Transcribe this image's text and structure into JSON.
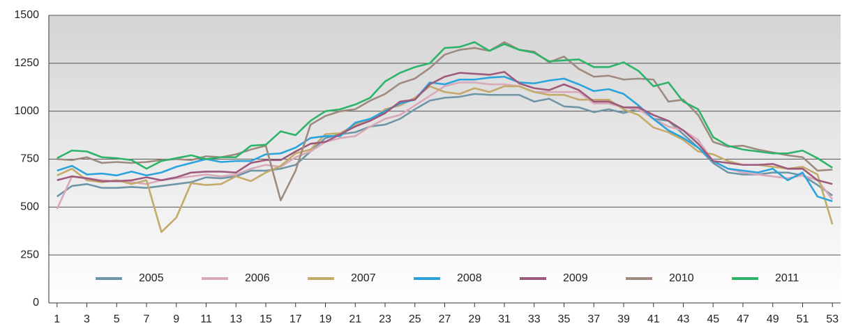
{
  "chart_data": {
    "type": "line",
    "x": [
      1,
      2,
      3,
      4,
      5,
      6,
      7,
      8,
      9,
      10,
      11,
      12,
      13,
      14,
      15,
      16,
      17,
      18,
      19,
      20,
      21,
      22,
      23,
      24,
      25,
      26,
      27,
      28,
      29,
      30,
      31,
      32,
      33,
      34,
      35,
      36,
      37,
      38,
      39,
      40,
      41,
      42,
      43,
      44,
      45,
      46,
      47,
      48,
      49,
      50,
      51,
      52,
      53
    ],
    "xlim": [
      0.45,
      53.55
    ],
    "xticks": [
      1,
      3,
      5,
      7,
      9,
      11,
      13,
      15,
      17,
      19,
      21,
      23,
      25,
      27,
      29,
      31,
      33,
      35,
      37,
      39,
      41,
      43,
      45,
      47,
      49,
      51,
      53
    ],
    "ylim": [
      0,
      1500
    ],
    "yticks": [
      0,
      250,
      500,
      750,
      1000,
      1250,
      1500
    ],
    "grid": true,
    "series": [
      {
        "name": "2005",
        "color": "#6f96a6",
        "values": [
          555,
          610,
          620,
          600,
          600,
          605,
          600,
          610,
          620,
          630,
          655,
          650,
          660,
          690,
          690,
          700,
          720,
          790,
          860,
          880,
          890,
          920,
          930,
          960,
          1010,
          1055,
          1070,
          1075,
          1090,
          1085,
          1085,
          1085,
          1050,
          1065,
          1025,
          1020,
          995,
          1010,
          990,
          1015,
          960,
          950,
          880,
          810,
          730,
          680,
          670,
          670,
          680,
          680,
          665,
          615,
          560
        ]
      },
      {
        "name": "2006",
        "color": "#d9a9b9",
        "values": [
          490,
          660,
          650,
          640,
          635,
          630,
          620,
          640,
          650,
          660,
          670,
          660,
          670,
          700,
          720,
          710,
          760,
          790,
          840,
          860,
          870,
          920,
          960,
          980,
          1030,
          1080,
          1130,
          1150,
          1150,
          1140,
          1140,
          1130,
          1100,
          1100,
          1100,
          1100,
          1040,
          1040,
          1020,
          1010,
          960,
          920,
          900,
          850,
          740,
          700,
          680,
          670,
          660,
          650,
          665,
          640,
          540
        ]
      },
      {
        "name": "2007",
        "color": "#c4aa6a",
        "values": [
          665,
          700,
          640,
          630,
          640,
          620,
          640,
          370,
          445,
          625,
          615,
          620,
          660,
          635,
          680,
          715,
          780,
          800,
          880,
          885,
          930,
          950,
          1010,
          1030,
          1070,
          1130,
          1100,
          1090,
          1120,
          1100,
          1130,
          1130,
          1100,
          1085,
          1085,
          1060,
          1060,
          1060,
          1010,
          980,
          915,
          890,
          850,
          790,
          775,
          740,
          720,
          720,
          710,
          700,
          710,
          670,
          410
        ]
      },
      {
        "name": "2008",
        "color": "#2ba3dc",
        "values": [
          690,
          715,
          670,
          675,
          665,
          685,
          665,
          680,
          710,
          730,
          750,
          735,
          740,
          740,
          775,
          780,
          810,
          860,
          870,
          870,
          940,
          960,
          1000,
          1040,
          1060,
          1150,
          1140,
          1165,
          1165,
          1175,
          1180,
          1150,
          1145,
          1160,
          1170,
          1140,
          1105,
          1115,
          1090,
          1030,
          960,
          900,
          860,
          810,
          740,
          700,
          690,
          680,
          700,
          640,
          680,
          555,
          530
        ]
      },
      {
        "name": "2009",
        "color": "#9e5a7c",
        "values": [
          640,
          660,
          650,
          635,
          635,
          640,
          655,
          640,
          655,
          680,
          685,
          685,
          680,
          730,
          745,
          745,
          790,
          830,
          840,
          880,
          920,
          950,
          990,
          1050,
          1060,
          1140,
          1180,
          1200,
          1195,
          1190,
          1205,
          1145,
          1120,
          1110,
          1140,
          1110,
          1050,
          1050,
          1020,
          1020,
          980,
          950,
          900,
          830,
          740,
          730,
          720,
          720,
          725,
          700,
          700,
          640,
          620
        ]
      },
      {
        "name": "2010",
        "color": "#9e8a7e",
        "values": [
          750,
          745,
          760,
          730,
          735,
          730,
          735,
          745,
          750,
          745,
          765,
          760,
          775,
          800,
          820,
          535,
          690,
          930,
          975,
          1000,
          1010,
          1055,
          1090,
          1145,
          1170,
          1225,
          1295,
          1320,
          1330,
          1315,
          1360,
          1320,
          1310,
          1255,
          1285,
          1220,
          1180,
          1185,
          1165,
          1170,
          1165,
          1050,
          1060,
          980,
          840,
          815,
          820,
          800,
          785,
          770,
          760,
          690,
          695
        ]
      },
      {
        "name": "2011",
        "color": "#2db36a",
        "values": [
          755,
          795,
          790,
          760,
          755,
          745,
          700,
          740,
          755,
          770,
          750,
          760,
          760,
          820,
          825,
          895,
          875,
          950,
          1000,
          1010,
          1035,
          1070,
          1155,
          1200,
          1230,
          1250,
          1330,
          1335,
          1360,
          1315,
          1350,
          1320,
          1305,
          1260,
          1265,
          1270,
          1230,
          1230,
          1255,
          1210,
          1130,
          1150,
          1050,
          1010,
          865,
          820,
          800,
          790,
          780,
          780,
          795,
          755,
          705
        ]
      }
    ]
  }
}
